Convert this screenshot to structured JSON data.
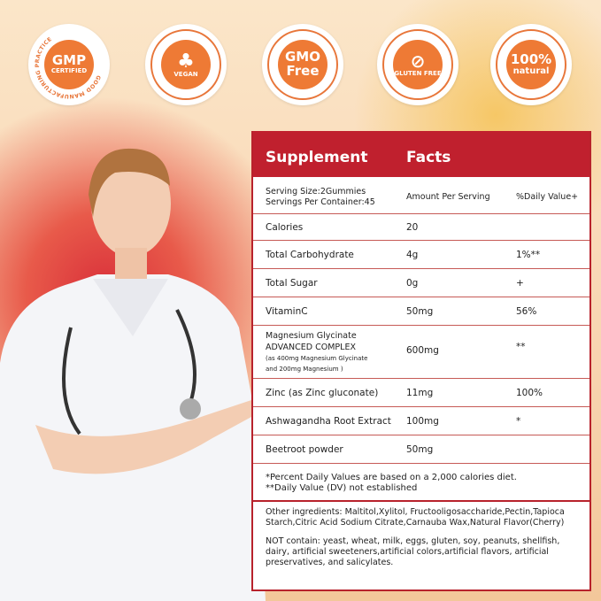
{
  "badges": [
    {
      "main": "GMP",
      "sub": "CERTIFIED",
      "ring_text": "GOOD MANUFACTURING PRACTICE",
      "icon": "gmp-badge"
    },
    {
      "main": "",
      "sub": "",
      "ring_text": "VEGAN",
      "icon": "broccoli-icon"
    },
    {
      "main": "GMO",
      "sub": "Free",
      "ring_text": "",
      "icon": "gmo-free-badge"
    },
    {
      "main": "",
      "sub": "",
      "ring_text": "GLUTEN FREE",
      "icon": "crossed-wheat-icon"
    },
    {
      "main": "100%",
      "sub": "natural",
      "ring_text": "",
      "icon": "natural-badge"
    }
  ],
  "facts": {
    "title_left": "Supplement",
    "title_right": "Facts",
    "serving_size": "Serving Size:2Gummies",
    "servings_per_container": "Servings Per Container:45",
    "amount_header": "Amount Per Serving",
    "dv_header": "%Daily Value+",
    "rows": [
      {
        "name": "Calories",
        "amount": "20",
        "dv": ""
      },
      {
        "name": "Total Carbohydrate",
        "amount": "4g",
        "dv": "1%**"
      },
      {
        "name": "Total Sugar",
        "amount": "0g",
        "dv": "+"
      },
      {
        "name": "VitaminC",
        "amount": "50mg",
        "dv": "56%"
      },
      {
        "name": "Magnesium Glycinate",
        "name2": "ADVANCED COMPLEX",
        "note1": "(as 400mg Magnesium Glycinate",
        "note2": "and 200mg Magnesium )",
        "amount": "600mg",
        "dv": "**"
      },
      {
        "name": "Zinc (as Zinc gluconate)",
        "amount": "11mg",
        "dv": "100%"
      },
      {
        "name": "Ashwagandha Root Extract",
        "amount": "100mg",
        "dv": "*"
      },
      {
        "name": "Beetroot powder",
        "amount": "50mg",
        "dv": ""
      }
    ],
    "footnote1": "*Percent Daily Values are based on a 2,000 calories diet.",
    "footnote2": "**Daily Value (DV) not established",
    "other_ingredients": "Other ingredients: Maltitol,Xylitol, Fructooligosaccharide,Pectin,Tapioca Starch,Citric Acid Sodium Citrate,Carnauba Wax,Natural Flavor(Cherry)",
    "not_contain": "NOT contain: yeast, wheat, milk, eggs, gluten, soy, peanuts, shellfish, dairy, artificial sweeteners,artificial colors,artificial flavors, artificial preservatives, and salicylates."
  },
  "colors": {
    "red": "#c0202e",
    "orange": "#ee7a35"
  }
}
